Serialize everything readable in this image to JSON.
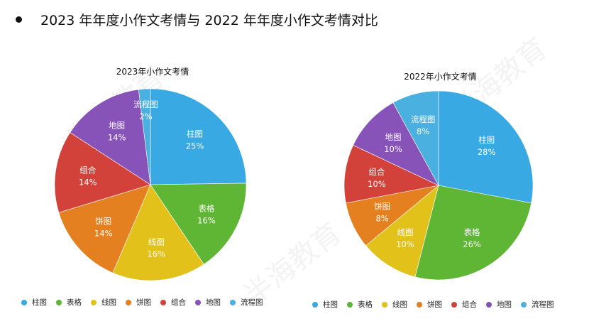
{
  "page": {
    "title": "2023 年年度小作文考情与 2022 年年度小作文考情对比"
  },
  "watermark": {
    "text": "半海教育"
  },
  "colors": {
    "柱图": "#38A9E2",
    "表格": "#5FB534",
    "线图": "#E2C11B",
    "饼图": "#E4801F",
    "组合": "#D2423A",
    "地图": "#8753B8",
    "流程图": "#4AB0E0"
  },
  "chart_data": [
    {
      "type": "pie",
      "title": "2023年小作文考情",
      "slices": [
        {
          "label": "柱图",
          "value": 25,
          "text": "25%"
        },
        {
          "label": "表格",
          "value": 16,
          "text": "16%"
        },
        {
          "label": "线图",
          "value": 16,
          "text": "16%"
        },
        {
          "label": "饼图",
          "value": 14,
          "text": "14%"
        },
        {
          "label": "组合",
          "value": 14,
          "text": "14%"
        },
        {
          "label": "地图",
          "value": 14,
          "text": "14%"
        },
        {
          "label": "流程图",
          "value": 2,
          "text": "2%"
        }
      ],
      "legend": [
        "柱图",
        "表格",
        "线图",
        "饼图",
        "组合",
        "地图",
        "流程图"
      ]
    },
    {
      "type": "pie",
      "title": "2022年小作文考情",
      "slices": [
        {
          "label": "柱图",
          "value": 28,
          "text": "28%"
        },
        {
          "label": "表格",
          "value": 26,
          "text": "26%"
        },
        {
          "label": "线图",
          "value": 10,
          "text": "10%"
        },
        {
          "label": "饼图",
          "value": 8,
          "text": "8%"
        },
        {
          "label": "组合",
          "value": 10,
          "text": "10%"
        },
        {
          "label": "地图",
          "value": 10,
          "text": "10%"
        },
        {
          "label": "流程图",
          "value": 8,
          "text": "8%"
        }
      ],
      "legend": [
        "柱图",
        "表格",
        "线图",
        "饼图",
        "组合",
        "地图",
        "流程图"
      ]
    }
  ]
}
